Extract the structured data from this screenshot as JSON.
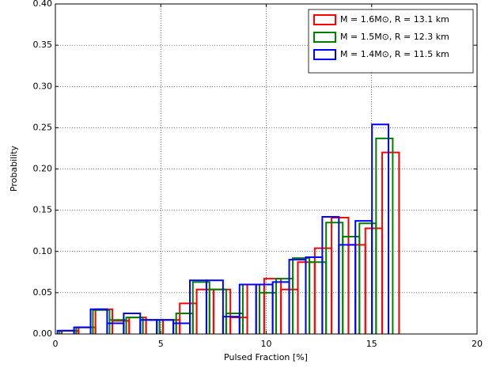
{
  "chart_data": {
    "type": "histogram",
    "xlabel": "Pulsed Fraction [%]",
    "ylabel": "Probability",
    "xlim": [
      0,
      20
    ],
    "ylim": [
      0,
      0.4
    ],
    "xticks": [
      0,
      5,
      10,
      15,
      20
    ],
    "yticks": [
      {
        "value": 0,
        "label": "0.00"
      },
      {
        "value": 0.05,
        "label": "0.05"
      },
      {
        "value": 0.1,
        "label": "0.10"
      },
      {
        "value": 0.15,
        "label": "0.15"
      },
      {
        "value": 0.2,
        "label": "0.20"
      },
      {
        "value": 0.25,
        "label": "0.25"
      },
      {
        "value": 0.3,
        "label": "0.30"
      },
      {
        "value": 0.35,
        "label": "0.35"
      },
      {
        "value": 0.4,
        "label": "0.40"
      }
    ],
    "grid": true,
    "legend": "upper right",
    "series": [
      {
        "name": "M = 1.6M⊙, R = 13.1 km",
        "color": "#ff0000",
        "bins": [
          0.3,
          1.1,
          1.9,
          2.7,
          3.5,
          4.3,
          5.1,
          5.9,
          6.7,
          7.5,
          8.3,
          9.1,
          9.9,
          10.7,
          11.5,
          12.3,
          13.1,
          13.9,
          14.7,
          15.5,
          16.3
        ],
        "values": [
          0.004,
          0.008,
          0.03,
          0.016,
          0.02,
          0.017,
          0.017,
          0.037,
          0.054,
          0.054,
          0.02,
          0.06,
          0.067,
          0.054,
          0.087,
          0.104,
          0.141,
          0.108,
          0.128,
          0.22
        ]
      },
      {
        "name": "M = 1.5M⊙, R = 12.3 km",
        "color": "#008000",
        "bins": [
          0.2,
          0.99,
          1.78,
          2.57,
          3.36,
          4.15,
          4.94,
          5.73,
          6.52,
          7.31,
          8.1,
          8.89,
          9.68,
          10.47,
          11.26,
          12.05,
          12.84,
          13.63,
          14.42,
          15.21,
          16.0
        ],
        "values": [
          0.004,
          0.008,
          0.029,
          0.017,
          0.02,
          0.017,
          0.017,
          0.025,
          0.063,
          0.054,
          0.025,
          0.06,
          0.05,
          0.067,
          0.092,
          0.087,
          0.135,
          0.118,
          0.134,
          0.237
        ]
      },
      {
        "name": "M = 1.4M⊙, R = 11.5 km",
        "color": "#0000ff",
        "bins": [
          0.1,
          0.885,
          1.67,
          2.455,
          3.24,
          4.025,
          4.81,
          5.595,
          6.38,
          7.165,
          7.95,
          8.735,
          9.52,
          10.305,
          11.09,
          11.875,
          12.66,
          13.445,
          14.23,
          15.015,
          15.8
        ],
        "values": [
          0.004,
          0.008,
          0.03,
          0.013,
          0.025,
          0.017,
          0.017,
          0.013,
          0.065,
          0.065,
          0.021,
          0.06,
          0.06,
          0.063,
          0.09,
          0.093,
          0.142,
          0.108,
          0.137,
          0.254
        ]
      }
    ]
  }
}
